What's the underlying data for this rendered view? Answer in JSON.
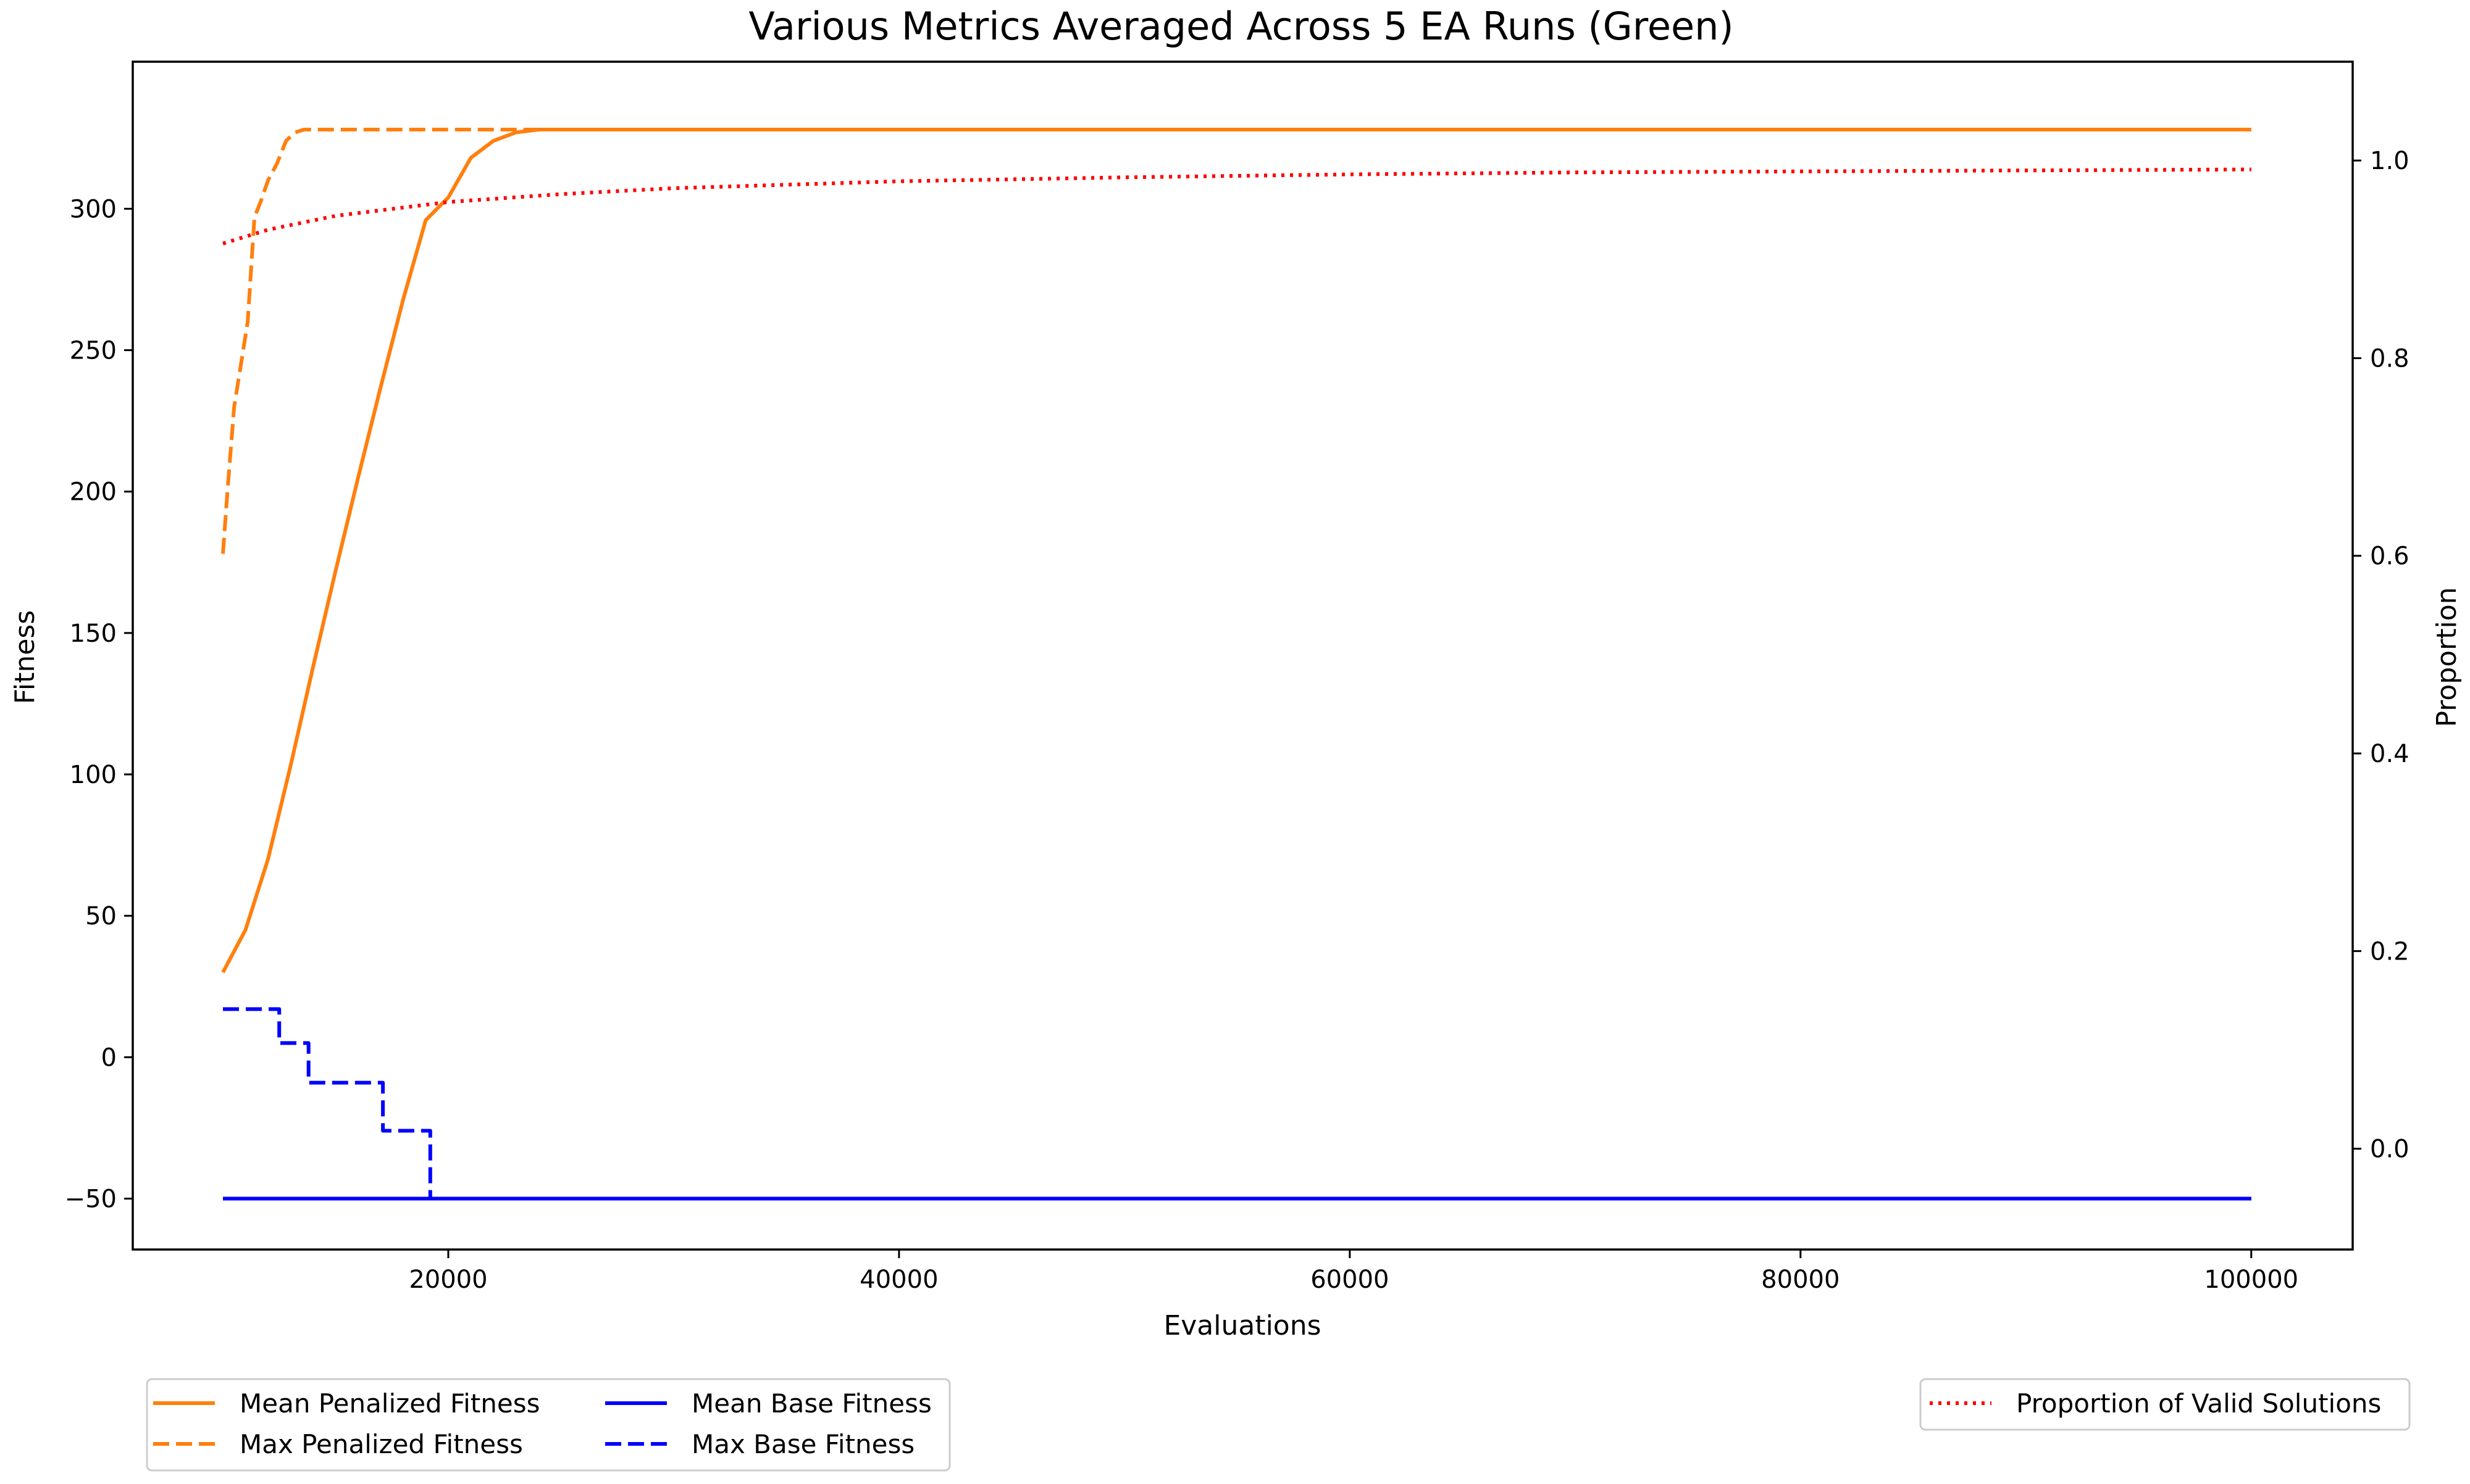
{
  "chart_data": {
    "type": "line",
    "title": "Various Metrics Averaged Across 5 EA Runs (Green)",
    "xlabel": "Evaluations",
    "ylabel_left": "Fitness",
    "ylabel_right": "Proportion",
    "xlim": [
      6000,
      104500
    ],
    "ylim_left": [
      -68,
      352
    ],
    "ylim_right": [
      -0.102,
      1.1
    ],
    "x_ticks": [
      20000,
      40000,
      60000,
      80000,
      100000
    ],
    "x_tick_labels": [
      "20000",
      "40000",
      "60000",
      "80000",
      "100000"
    ],
    "y_left_ticks": [
      -50,
      0,
      50,
      100,
      150,
      200,
      250,
      300
    ],
    "y_left_tick_labels": [
      "−50",
      "0",
      "50",
      "100",
      "150",
      "200",
      "250",
      "300"
    ],
    "y_right_ticks": [
      0.0,
      0.2,
      0.4,
      0.6,
      0.8,
      1.0
    ],
    "y_right_tick_labels": [
      "0.0",
      "0.2",
      "0.4",
      "0.6",
      "0.8",
      "1.0"
    ],
    "grid": false,
    "legends": [
      {
        "placement": "below-left",
        "columns": 2,
        "entries": [
          "Mean Penalized Fitness",
          "Max Penalized Fitness",
          "Mean Base Fitness",
          "Max Base Fitness"
        ]
      },
      {
        "placement": "below-right",
        "columns": 1,
        "entries": [
          "Proportion of Valid Solutions"
        ]
      }
    ],
    "series": [
      {
        "name": "Mean Penalized Fitness",
        "axis": "left",
        "color": "#ff7f0e",
        "style": "solid",
        "x": [
          10000,
          11000,
          12000,
          13000,
          14000,
          15000,
          16000,
          17000,
          18000,
          19000,
          20000,
          21000,
          22000,
          23000,
          24000,
          26000,
          30000,
          40000,
          60000,
          80000,
          100000
        ],
        "y": [
          30,
          45,
          70,
          103,
          138,
          172,
          205,
          237,
          268,
          296,
          304,
          318,
          324,
          327,
          328,
          328,
          328,
          328,
          328,
          328,
          328
        ]
      },
      {
        "name": "Max Penalized Fitness",
        "axis": "left",
        "color": "#ff7f0e",
        "style": "dashed",
        "x": [
          10000,
          10200,
          10500,
          10800,
          11100,
          11400,
          11700,
          12000,
          12400,
          12800,
          13200,
          13600,
          14000,
          16000,
          20000,
          25000
        ],
        "y": [
          178,
          200,
          230,
          245,
          260,
          297,
          303,
          310,
          316,
          324,
          327,
          328,
          328,
          328,
          328,
          328
        ]
      },
      {
        "name": "Mean Base Fitness",
        "axis": "left",
        "color": "#0000ff",
        "style": "solid",
        "x": [
          10000,
          20000,
          40000,
          60000,
          80000,
          100000
        ],
        "y": [
          -50,
          -50,
          -50,
          -50,
          -50,
          -50
        ]
      },
      {
        "name": "Max Base Fitness",
        "axis": "left",
        "color": "#0000ff",
        "style": "dashed",
        "x": [
          10000,
          12500,
          12500,
          13800,
          13800,
          17100,
          17100,
          19200,
          19200,
          20000,
          40000,
          60000,
          80000,
          100000
        ],
        "y": [
          17,
          17,
          5,
          5,
          -9,
          -9,
          -26,
          -26,
          -50,
          -50,
          -50,
          -50,
          -50,
          -50
        ]
      },
      {
        "name": "Proportion of Valid Solutions",
        "axis": "right",
        "color": "#ff0000",
        "style": "dotted",
        "x": [
          10000,
          12000,
          15000,
          20000,
          25000,
          30000,
          40000,
          50000,
          60000,
          70000,
          80000,
          90000,
          100000
        ],
        "y": [
          0.916,
          0.93,
          0.944,
          0.958,
          0.966,
          0.972,
          0.979,
          0.983,
          0.986,
          0.988,
          0.989,
          0.99,
          0.991
        ]
      }
    ]
  }
}
